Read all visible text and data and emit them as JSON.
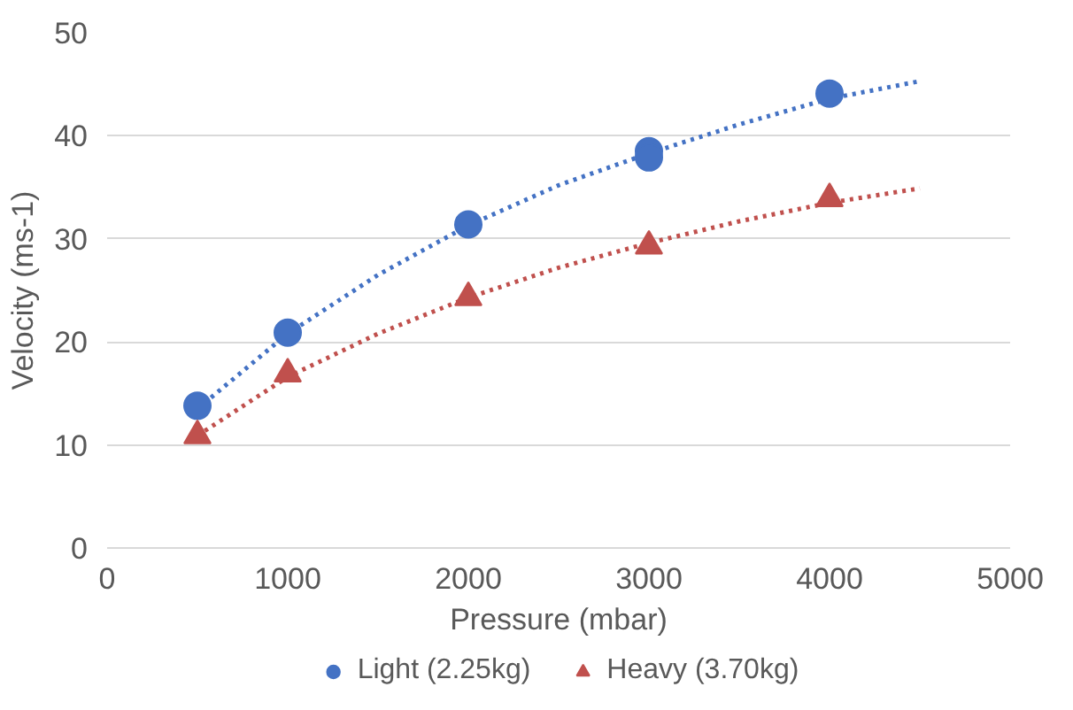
{
  "chart_data": {
    "type": "scatter",
    "xlabel": "Pressure (mbar)",
    "ylabel": "Velocity (ms-1)",
    "xlim": [
      0,
      5000
    ],
    "xticks": [
      0,
      1000,
      2000,
      3000,
      4000,
      5000
    ],
    "ylim": [
      0,
      50
    ],
    "yticks": [
      0,
      10,
      20,
      30,
      40,
      50
    ],
    "grid": "y",
    "legend": "bottom",
    "series": [
      {
        "type": "line",
        "line_style": "dotted",
        "color": "#4472c4",
        "x": [
          500,
          1000,
          1500,
          2000,
          2500,
          3000,
          3500,
          4000,
          4500
        ],
        "values": [
          13.5,
          20.8,
          26.5,
          31.3,
          35.2,
          38.3,
          41.1,
          43.6,
          45.3
        ]
      },
      {
        "type": "line",
        "line_style": "dotted",
        "color": "#c0504d",
        "x": [
          500,
          1000,
          1500,
          2000,
          2500,
          3000,
          3500,
          4000,
          4500
        ],
        "values": [
          10.9,
          16.6,
          20.8,
          24.3,
          27.2,
          29.6,
          31.7,
          33.5,
          34.9
        ]
      },
      {
        "name": "Light (2.25kg)",
        "marker": "circle",
        "color": "#4472c4",
        "x": [
          500,
          1000,
          2000,
          3000,
          3000,
          4000
        ],
        "values": [
          13.8,
          20.9,
          31.4,
          38.5,
          37.9,
          44.1
        ]
      },
      {
        "name": "Heavy (3.70kg)",
        "marker": "triangle",
        "color": "#c0504d",
        "x": [
          500,
          1000,
          2000,
          3000,
          4000
        ],
        "values": [
          10.9,
          16.9,
          24.3,
          29.3,
          33.9
        ]
      }
    ]
  }
}
